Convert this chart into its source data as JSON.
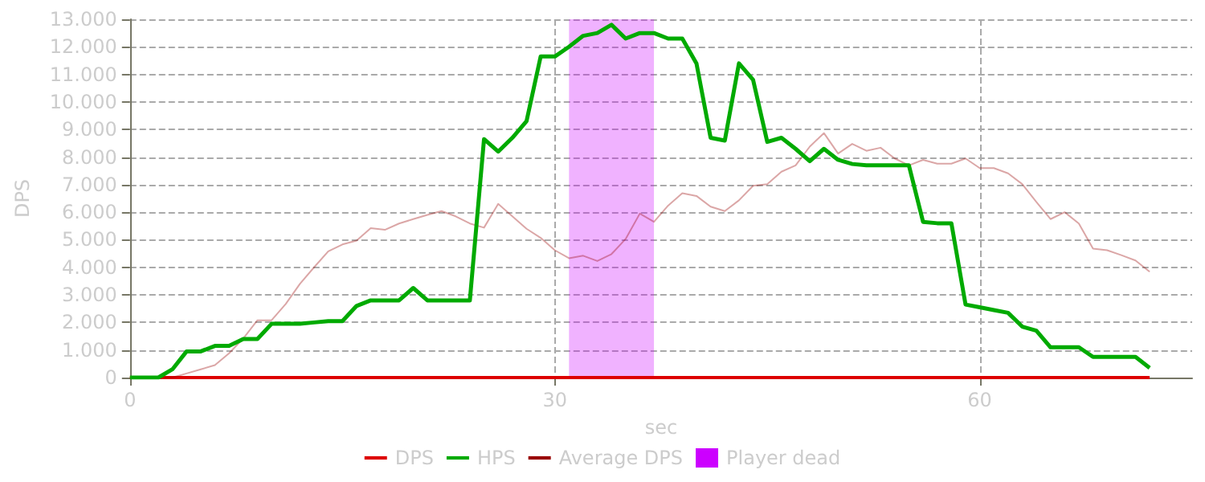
{
  "chart_data": {
    "type": "line",
    "xlabel": "sec",
    "ylabel": "DPS",
    "xlim": [
      0,
      75
    ],
    "xticks": [
      0,
      30,
      60
    ],
    "ylim": [
      0,
      13000
    ],
    "yticks": [
      0,
      {
        "value": 1000,
        "label": "1.000"
      },
      {
        "value": 2000,
        "label": "2.000"
      },
      {
        "value": 3000,
        "label": "3.000"
      },
      {
        "value": 4000,
        "label": "4.000"
      },
      {
        "value": 5000,
        "label": "5.000"
      },
      {
        "value": 6000,
        "label": "6.000"
      },
      {
        "value": 7000,
        "label": "7.000"
      },
      {
        "value": 8000,
        "label": "8.000"
      },
      {
        "value": 9000,
        "label": "9.000"
      },
      {
        "value": 10000,
        "label": "10.000"
      },
      {
        "value": 11000,
        "label": "11.000"
      },
      {
        "value": 12000,
        "label": "12.000"
      },
      {
        "value": 13000,
        "label": "13.000"
      }
    ],
    "x": [
      0,
      1,
      2,
      3,
      4,
      5,
      6,
      7,
      8,
      9,
      10,
      11,
      12,
      13,
      14,
      15,
      16,
      17,
      18,
      19,
      20,
      21,
      22,
      23,
      24,
      25,
      26,
      27,
      28,
      29,
      30,
      31,
      32,
      33,
      34,
      35,
      36,
      37,
      38,
      39,
      40,
      41,
      42,
      43,
      44,
      45,
      46,
      47,
      48,
      49,
      50,
      51,
      52,
      53,
      54,
      55,
      56,
      57,
      58,
      59,
      60,
      61,
      62,
      63,
      64,
      65,
      66,
      67,
      68,
      69,
      70,
      71,
      72
    ],
    "series": [
      {
        "name": "DPS",
        "color": "#dd0000",
        "values": [
          0,
          0,
          0,
          0,
          0,
          0,
          0,
          0,
          0,
          0,
          0,
          0,
          0,
          0,
          0,
          0,
          0,
          0,
          0,
          0,
          0,
          0,
          0,
          0,
          0,
          0,
          0,
          0,
          0,
          0,
          0,
          0,
          0,
          0,
          0,
          0,
          0,
          0,
          0,
          0,
          0,
          0,
          0,
          0,
          0,
          0,
          0,
          0,
          0,
          0,
          0,
          0,
          0,
          0,
          0,
          0,
          0,
          0,
          0,
          0,
          0,
          0,
          0,
          0,
          0,
          0,
          0,
          0,
          0,
          0,
          0,
          0,
          0
        ]
      },
      {
        "name": "HPS",
        "color": "#00aa00",
        "values": [
          0,
          0,
          0,
          300,
          950,
          950,
          1150,
          1150,
          1400,
          1400,
          1950,
          1950,
          1950,
          2000,
          2050,
          2050,
          2600,
          2800,
          2800,
          2800,
          3250,
          2800,
          2800,
          2800,
          2800,
          8650,
          8200,
          8700,
          9300,
          11650,
          11650,
          12000,
          12400,
          12500,
          12800,
          12300,
          12500,
          12500,
          12300,
          12300,
          11400,
          8700,
          8600,
          11400,
          10800,
          8550,
          8700,
          8300,
          7850,
          8300,
          7900,
          7750,
          7700,
          7700,
          7700,
          7700,
          5650,
          5600,
          5600,
          2650,
          2550,
          2450,
          2350,
          1850,
          1700,
          1100,
          1100,
          1100,
          750,
          750,
          750,
          750,
          350
        ]
      },
      {
        "name": "Average DPS",
        "color": "#990000",
        "values": [
          0,
          0,
          0,
          0,
          150,
          300,
          450,
          880,
          1420,
          2080,
          2080,
          2670,
          3400,
          4000,
          4580,
          4830,
          4970,
          5420,
          5360,
          5590,
          5750,
          5900,
          6040,
          5850,
          5590,
          5440,
          6300,
          5850,
          5400,
          5070,
          4620,
          4330,
          4420,
          4230,
          4480,
          5030,
          5950,
          5650,
          6240,
          6690,
          6590,
          6200,
          6040,
          6430,
          6960,
          7020,
          7470,
          7700,
          8380,
          8870,
          8130,
          8480,
          8230,
          8340,
          7950,
          7700,
          7900,
          7760,
          7760,
          7950,
          7600,
          7600,
          7410,
          7020,
          6370,
          5750,
          6000,
          5590,
          4680,
          4620,
          4440,
          4250,
          3840
        ]
      }
    ],
    "bands": [
      {
        "axis": "x",
        "from": 31,
        "to": 37,
        "label": "Player dead",
        "color": "#cc00ff"
      }
    ],
    "grid": true,
    "legend": "bottom",
    "marker": "none",
    "line_style": "solid"
  }
}
